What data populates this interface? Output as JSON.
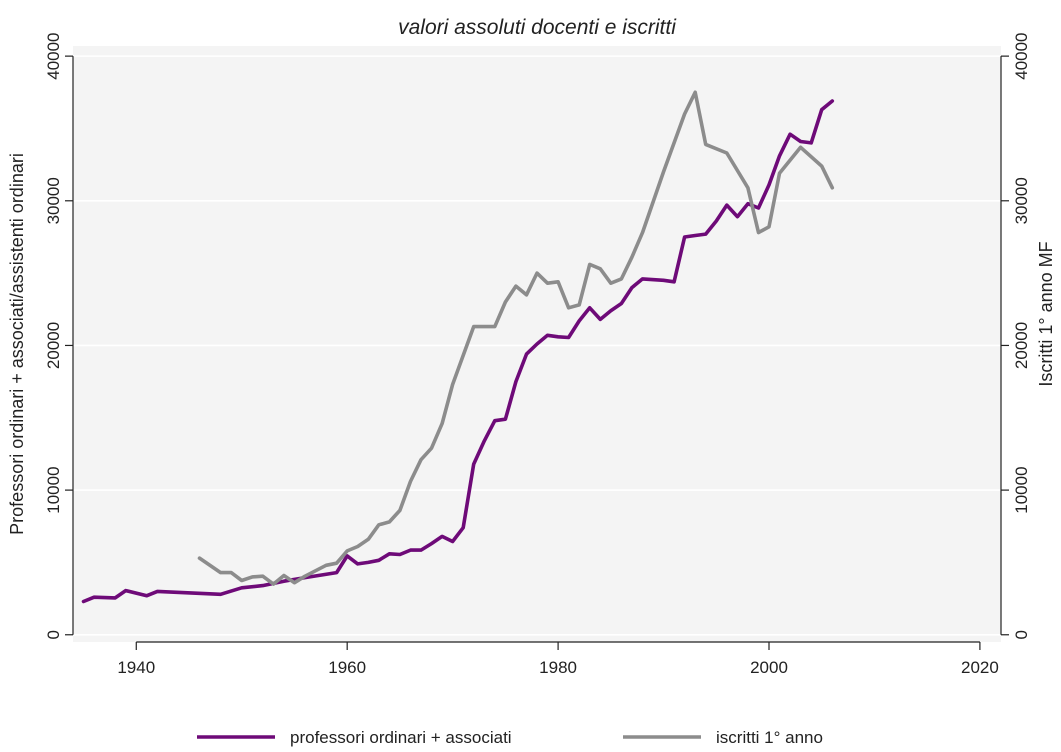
{
  "chart_data": {
    "type": "line",
    "title": "valori assoluti docenti e iscritti",
    "ylabel_left": "Professori ordinari + associati/assistenti ordinari",
    "ylabel_right": "Iscritti 1° anno MF",
    "xlim": [
      1934,
      2022
    ],
    "x_ticks": [
      1940,
      1960,
      1980,
      2000,
      2020
    ],
    "y_left_lim": [
      -500,
      40700
    ],
    "y_left_ticks": [
      0,
      10000,
      20000,
      30000,
      40000
    ],
    "y_right_lim": [
      -500,
      40700
    ],
    "y_right_ticks": [
      0,
      10000,
      20000,
      30000,
      40000
    ],
    "grid": true,
    "legend_position": "bottom",
    "series": [
      {
        "name": "professori ordinari + associati",
        "axis": "left",
        "color": "#6e0a78",
        "points": [
          [
            1935,
            2300
          ],
          [
            1936,
            2600
          ],
          [
            1938,
            2550
          ],
          [
            1939,
            3050
          ],
          [
            1941,
            2700
          ],
          [
            1942,
            3000
          ],
          [
            1948,
            2800
          ],
          [
            1950,
            3250
          ],
          [
            1952,
            3400
          ],
          [
            1954,
            3700
          ],
          [
            1956,
            3950
          ],
          [
            1959,
            4300
          ],
          [
            1960,
            5450
          ],
          [
            1961,
            4900
          ],
          [
            1962,
            5000
          ],
          [
            1963,
            5150
          ],
          [
            1964,
            5600
          ],
          [
            1965,
            5550
          ],
          [
            1966,
            5850
          ],
          [
            1967,
            5850
          ],
          [
            1968,
            6300
          ],
          [
            1969,
            6800
          ],
          [
            1970,
            6450
          ],
          [
            1971,
            7400
          ],
          [
            1972,
            11800
          ],
          [
            1973,
            13400
          ],
          [
            1974,
            14800
          ],
          [
            1975,
            14900
          ],
          [
            1976,
            17500
          ],
          [
            1977,
            19400
          ],
          [
            1978,
            20100
          ],
          [
            1979,
            20700
          ],
          [
            1980,
            20600
          ],
          [
            1981,
            20550
          ],
          [
            1982,
            21700
          ],
          [
            1983,
            22600
          ],
          [
            1984,
            21800
          ],
          [
            1985,
            22400
          ],
          [
            1986,
            22900
          ],
          [
            1987,
            24000
          ],
          [
            1988,
            24600
          ],
          [
            1990,
            24500
          ],
          [
            1991,
            24400
          ],
          [
            1992,
            27500
          ],
          [
            1993,
            27600
          ],
          [
            1994,
            27700
          ],
          [
            1995,
            28600
          ],
          [
            1996,
            29700
          ],
          [
            1997,
            28900
          ],
          [
            1998,
            29800
          ],
          [
            1999,
            29500
          ],
          [
            2000,
            31100
          ],
          [
            2001,
            33100
          ],
          [
            2002,
            34600
          ],
          [
            2003,
            34100
          ],
          [
            2004,
            34000
          ],
          [
            2005,
            36300
          ],
          [
            2006,
            36900
          ]
        ]
      },
      {
        "name": "iscritti 1° anno",
        "axis": "right",
        "color": "#8c8c8c",
        "points": [
          [
            1946,
            5300
          ],
          [
            1948,
            4300
          ],
          [
            1949,
            4300
          ],
          [
            1950,
            3750
          ],
          [
            1951,
            4000
          ],
          [
            1952,
            4050
          ],
          [
            1953,
            3500
          ],
          [
            1954,
            4100
          ],
          [
            1955,
            3600
          ],
          [
            1956,
            4050
          ],
          [
            1958,
            4800
          ],
          [
            1959,
            4950
          ],
          [
            1960,
            5800
          ],
          [
            1961,
            6100
          ],
          [
            1962,
            6600
          ],
          [
            1963,
            7600
          ],
          [
            1964,
            7800
          ],
          [
            1965,
            8600
          ],
          [
            1966,
            10600
          ],
          [
            1967,
            12100
          ],
          [
            1968,
            12900
          ],
          [
            1969,
            14600
          ],
          [
            1970,
            17300
          ],
          [
            1972,
            21300
          ],
          [
            1974,
            21300
          ],
          [
            1975,
            23000
          ],
          [
            1976,
            24100
          ],
          [
            1977,
            23500
          ],
          [
            1978,
            25000
          ],
          [
            1979,
            24300
          ],
          [
            1980,
            24400
          ],
          [
            1981,
            22600
          ],
          [
            1982,
            22800
          ],
          [
            1983,
            25600
          ],
          [
            1984,
            25300
          ],
          [
            1985,
            24300
          ],
          [
            1986,
            24600
          ],
          [
            1987,
            26100
          ],
          [
            1988,
            27800
          ],
          [
            1990,
            32000
          ],
          [
            1992,
            36000
          ],
          [
            1993,
            37500
          ],
          [
            1994,
            33900
          ],
          [
            1996,
            33300
          ],
          [
            1998,
            30900
          ],
          [
            1999,
            27800
          ],
          [
            2000,
            28200
          ],
          [
            2001,
            31900
          ],
          [
            2003,
            33700
          ],
          [
            2005,
            32400
          ],
          [
            2006,
            30900
          ]
        ]
      }
    ]
  }
}
